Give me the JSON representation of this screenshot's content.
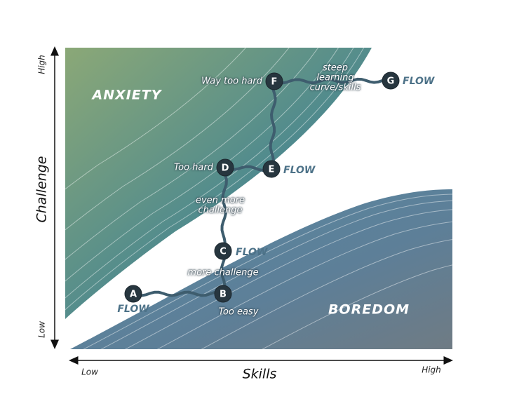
{
  "axes": {
    "y_label": "Challenge",
    "y_high": "High",
    "y_low": "Low",
    "x_label": "Skills",
    "x_low": "Low",
    "x_high": "High"
  },
  "regions": {
    "anxiety": "ANXIETY",
    "boredom": "BOREDOM"
  },
  "nodes": [
    {
      "id": "A",
      "note": "FLOW"
    },
    {
      "id": "B",
      "note": "Too easy"
    },
    {
      "id": "C",
      "note": "FLOW"
    },
    {
      "id": "D",
      "note": "Too hard"
    },
    {
      "id": "E",
      "note": "FLOW"
    },
    {
      "id": "F",
      "note": "Way too hard"
    },
    {
      "id": "G",
      "note": "FLOW"
    }
  ],
  "edge_labels": [
    {
      "lines": [
        "more challenge"
      ]
    },
    {
      "lines": [
        "even more",
        "challenge"
      ]
    },
    {
      "lines": [
        "steep",
        "learning",
        "curve/skills"
      ]
    }
  ]
}
